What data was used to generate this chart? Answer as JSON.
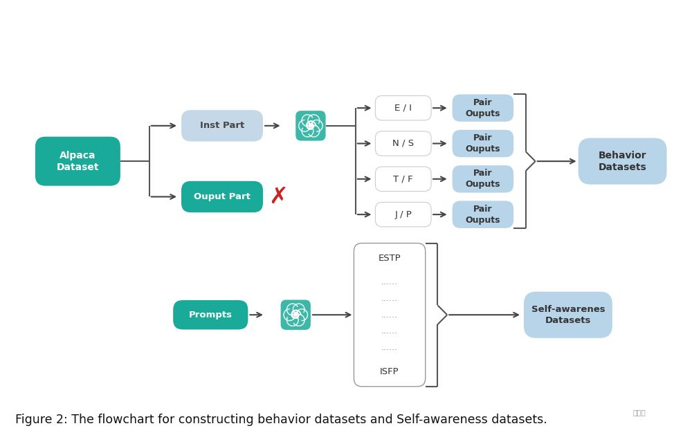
{
  "bg_color": "#ffffff",
  "teal_dark": "#1aaa99",
  "inst_part_color": "#c5d8e8",
  "blue_light": "#b8d4e8",
  "white": "#ffffff",
  "arrow_color": "#444444",
  "line_color": "#555555",
  "caption": "Figure 2: The flowchart for constructing behavior datasets and Self-awareness datasets.",
  "caption_fontsize": 12.5,
  "mbti_labels": [
    "E / I",
    "N / S",
    "T / F",
    "J / P"
  ],
  "pair_label": "Pair\nOuputs",
  "behavior_label": "Behavior\nDatasets",
  "self_aware_label": "Self-awarenes\nDatasets",
  "alpaca_label": "Alpaca\nDataset",
  "inst_label": "Inst Part",
  "ouput_label": "Ouput Part",
  "prompts_label": "Prompts",
  "estp_label": "ESTP",
  "isfp_label": "ISFP",
  "dots": "......",
  "watermark": "量子位"
}
